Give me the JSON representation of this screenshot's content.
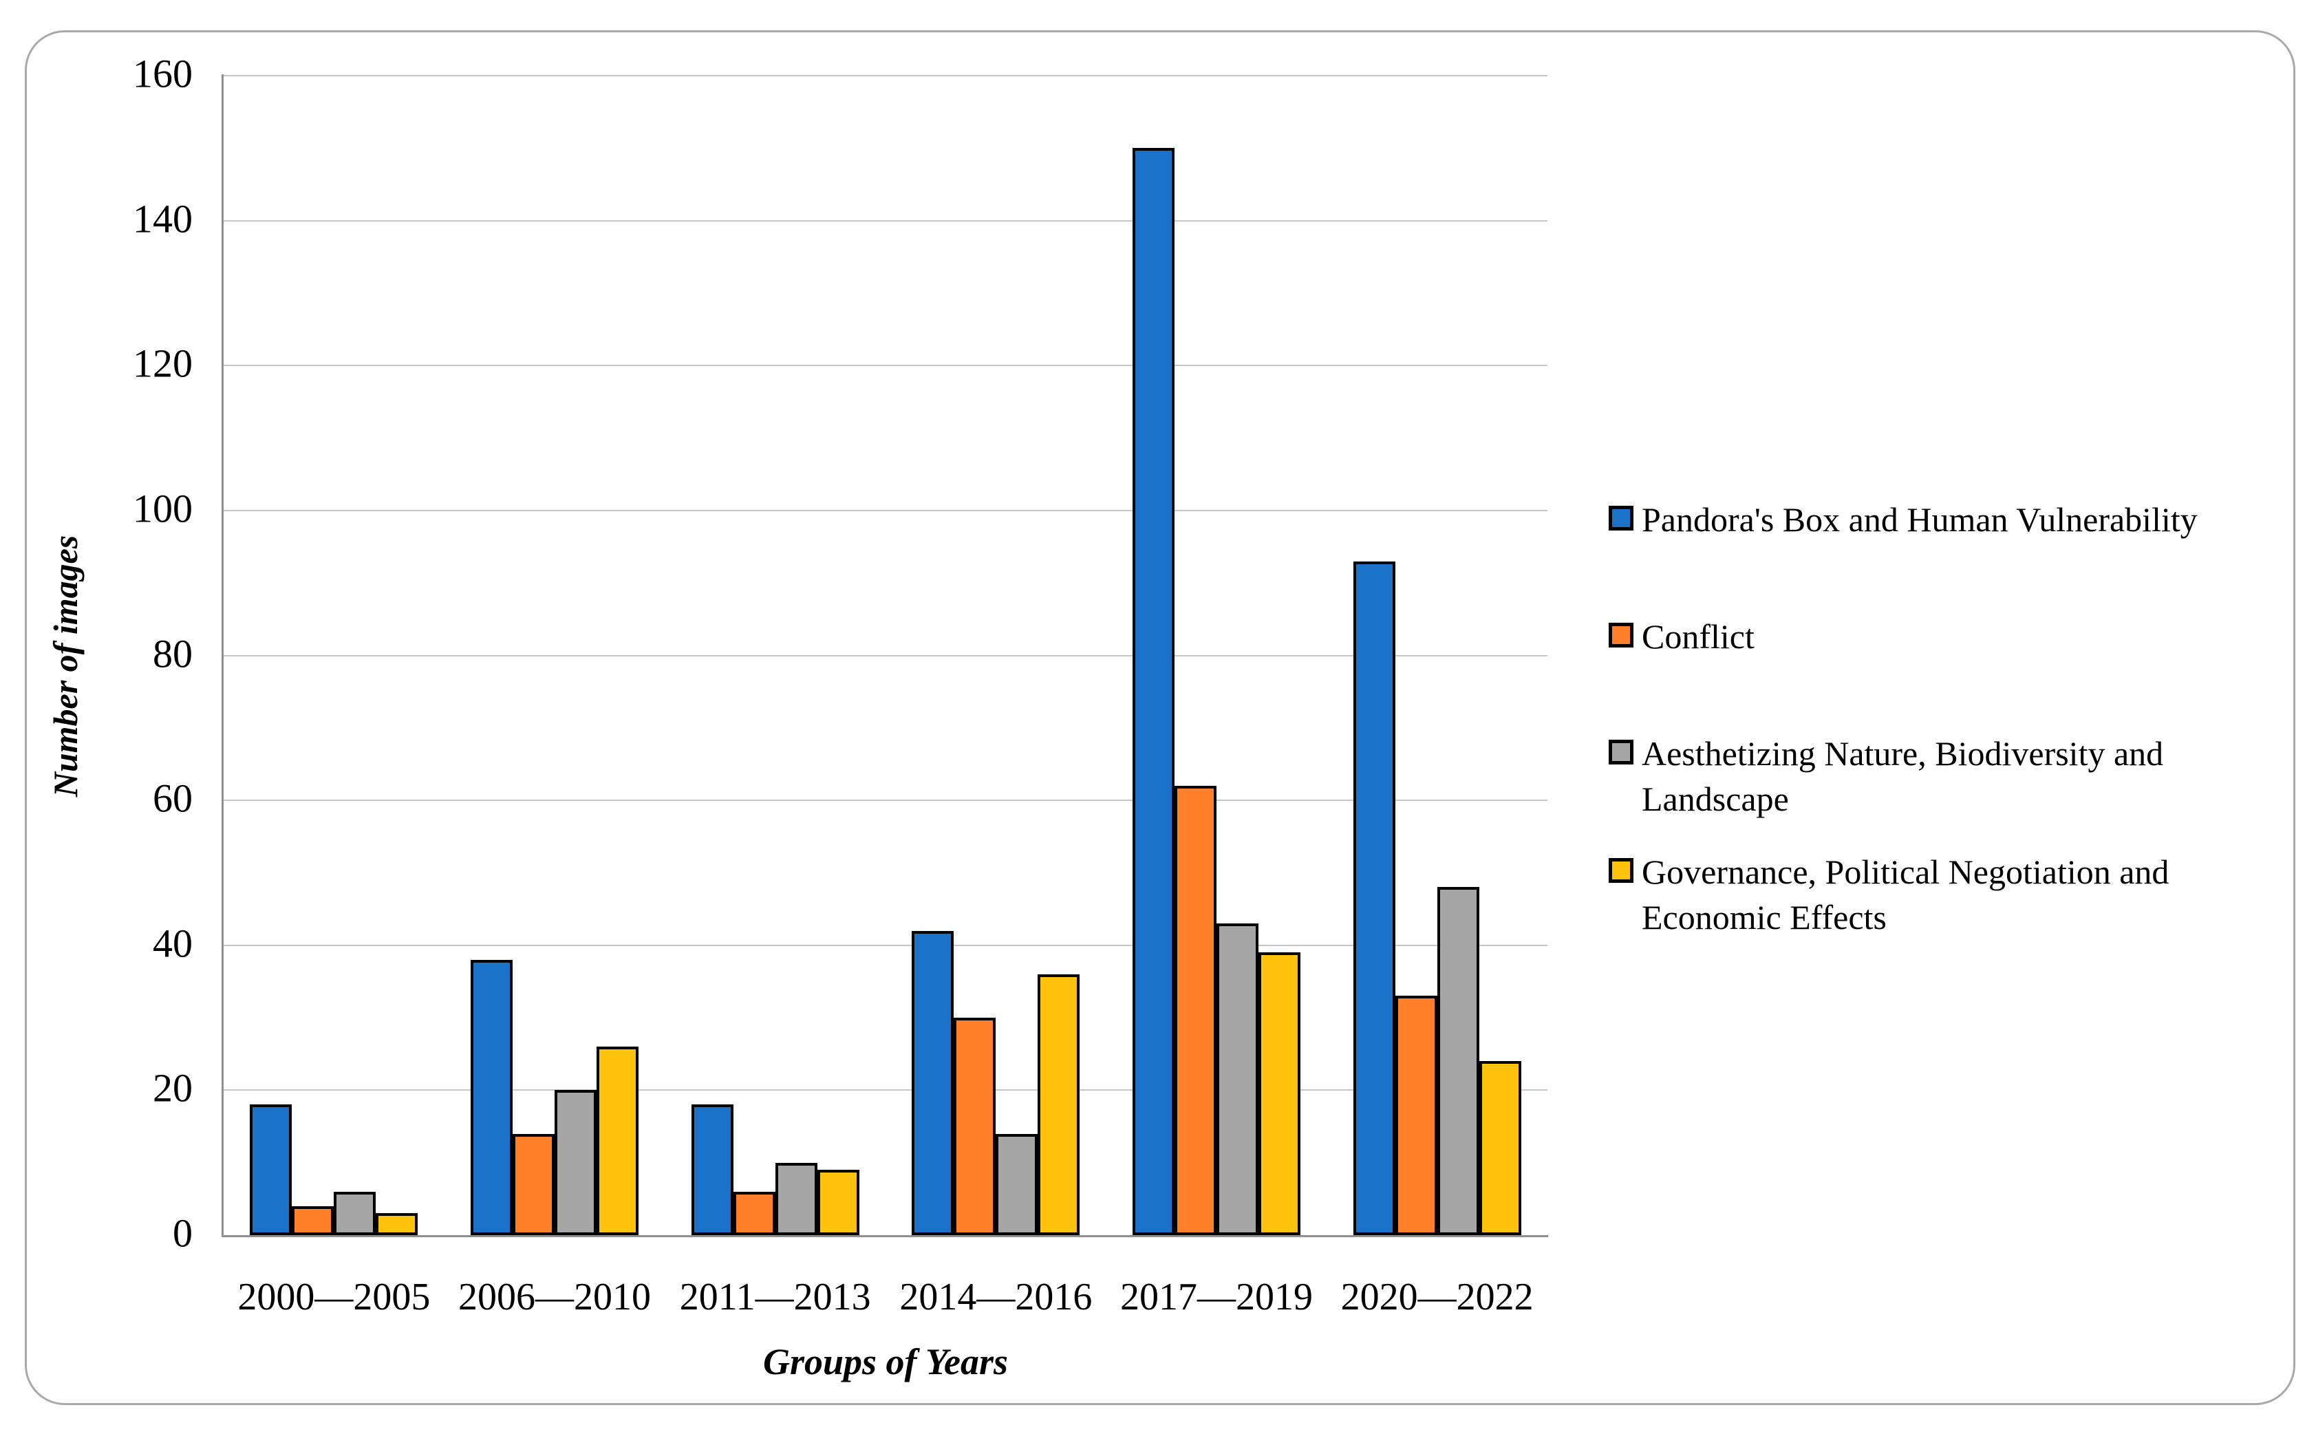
{
  "chart_data": {
    "type": "bar",
    "title": "",
    "xlabel": "Groups of Years",
    "ylabel": "Number of images",
    "categories": [
      "2000—2005",
      "2006—2010",
      "2011—2013",
      "2014—2016",
      "2017—2019",
      "2020—2022"
    ],
    "series": [
      {
        "name": "Pandora's Box and Human Vulnerability",
        "color": "#1a73c8",
        "values": [
          18,
          38,
          18,
          42,
          150,
          93
        ]
      },
      {
        "name": "Conflict",
        "color": "#ff7f2b",
        "values": [
          4,
          14,
          6,
          30,
          62,
          33
        ]
      },
      {
        "name": "Aesthetizing Nature, Biodiversity and Landscape",
        "color": "#a6a6a6",
        "values": [
          6,
          20,
          10,
          14,
          43,
          48
        ]
      },
      {
        "name": "Governance, Political Negotiation and Economic Effects",
        "color": "#ffc30b",
        "values": [
          3,
          26,
          9,
          36,
          39,
          24
        ]
      }
    ],
    "ylim": [
      0,
      160
    ],
    "ytick_interval": 20,
    "yticks": [
      0,
      20,
      40,
      60,
      80,
      100,
      120,
      140,
      160
    ],
    "grid": "horizontal",
    "legend_position": "right",
    "bar_outline_color": "#000000"
  },
  "colors": {
    "background": "#ffffff",
    "frame_border": "#a9a9a9",
    "gridline": "#c6c6c6",
    "axis_line": "#8f8f8f"
  }
}
